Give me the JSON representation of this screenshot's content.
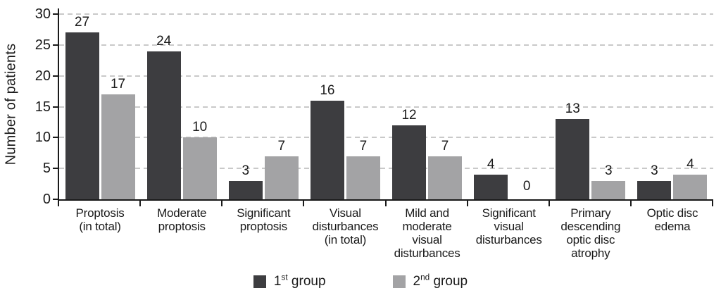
{
  "chart_data": {
    "type": "bar",
    "title": "",
    "xlabel": "",
    "ylabel": "Number of patients",
    "ylim": [
      0,
      30
    ],
    "yticks": [
      0,
      5,
      10,
      15,
      20,
      25,
      30
    ],
    "grid": "horizontal-dashed",
    "legend_position": "bottom-center",
    "categories": [
      "Proptosis\n(in total)",
      "Moderate\nproptosis",
      "Significant\nproptosis",
      "Visual\ndisturbances\n(in total)",
      "Mild and\nmoderate\nvisual\ndisturbances",
      "Significant\nvisual\ndisturbances",
      "Primary\ndescending\noptic disc\natrophy",
      "Optic disc\nedema"
    ],
    "series": [
      {
        "name": "1st group",
        "name_parts": {
          "num": "1",
          "sup": "st",
          "rest": " group"
        },
        "color": "#3d3d40",
        "values": [
          27,
          24,
          3,
          16,
          12,
          4,
          13,
          3
        ]
      },
      {
        "name": "2nd group",
        "name_parts": {
          "num": "2",
          "sup": "nd",
          "rest": " group"
        },
        "color": "#a3a3a5",
        "values": [
          17,
          10,
          7,
          7,
          7,
          0,
          3,
          4
        ]
      }
    ],
    "colors": {
      "axis": "#1a1a1a",
      "grid": "#c9c9c9",
      "text": "#1a1a1a",
      "background": "#ffffff"
    }
  }
}
